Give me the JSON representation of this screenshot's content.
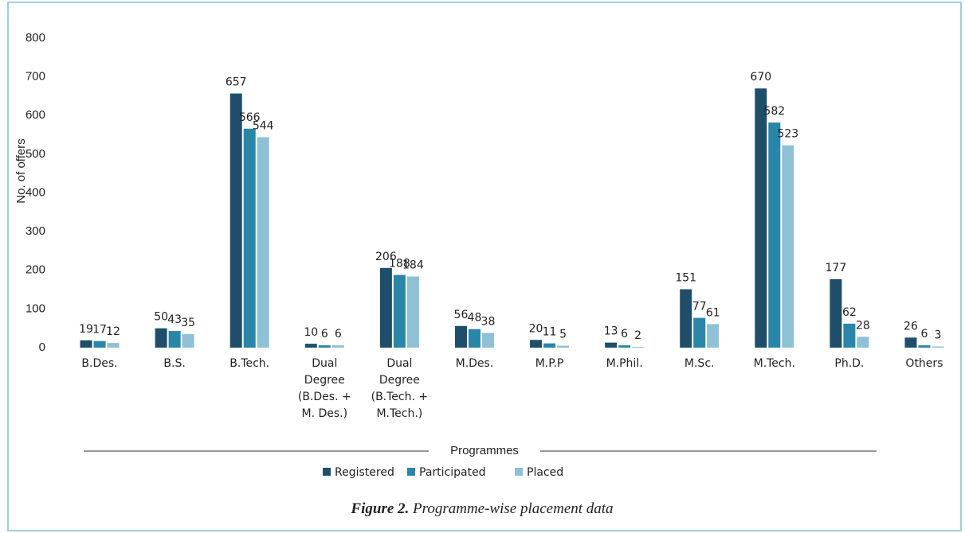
{
  "chart_data": {
    "type": "bar",
    "y_label": "No. of offers",
    "x_label": "Programmes",
    "caption_label": "Figure 2.",
    "caption": "Programme-wise placement data",
    "categories": [
      "B.Des.",
      "B.S.",
      "B.Tech.",
      "Dual Degree (B.Des. + M. Des.)",
      "Dual Degree (B.Tech. + M.Tech.)",
      "M.Des.",
      "M.P.P",
      "M.Phil.",
      "M.Sc.",
      "M.Tech.",
      "Ph.D.",
      "Others"
    ],
    "series": [
      {
        "name": "Registered",
        "color": "#1f4e6b",
        "values": [
          19,
          50,
          657,
          10,
          206,
          56,
          20,
          13,
          151,
          670,
          177,
          26
        ]
      },
      {
        "name": "Participated",
        "color": "#2a86a8",
        "values": [
          17,
          43,
          566,
          6,
          188,
          48,
          11,
          6,
          77,
          582,
          62,
          6
        ]
      },
      {
        "name": "Placed",
        "color": "#8ec0d6",
        "values": [
          12,
          35,
          544,
          6,
          184,
          38,
          5,
          2,
          61,
          523,
          28,
          3
        ]
      }
    ],
    "ylim": [
      0,
      800
    ],
    "yticks": [
      0,
      100,
      200,
      300,
      400,
      500,
      600,
      700,
      800
    ],
    "grid": false
  }
}
